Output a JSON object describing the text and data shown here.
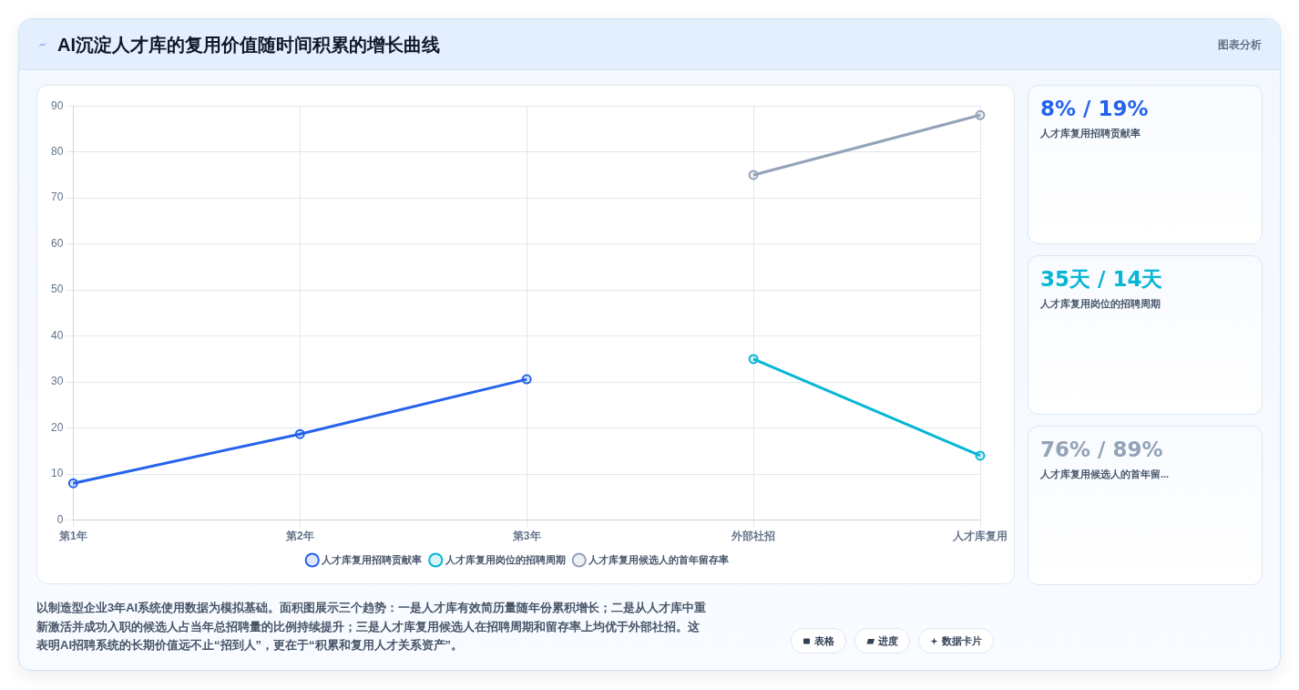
{
  "chart_data": {
    "type": "line",
    "title": "AI沉淀人才库的复用价值随时间积累的增长曲线",
    "categories": [
      "第1年",
      "第2年",
      "第3年",
      "外部社招",
      "人才库复用"
    ],
    "series": [
      {
        "name": "人才库复用招聘贡献率",
        "color": "#2563eb",
        "values": [
          8,
          18.7,
          30.6,
          null,
          null
        ]
      },
      {
        "name": "人才库复用岗位的招聘周期",
        "color": "#06b6d4",
        "values": [
          null,
          null,
          null,
          35,
          14
        ]
      },
      {
        "name": "人才库复用候选人的首年留存率",
        "color": "#94a3b8",
        "values": [
          null,
          null,
          null,
          75,
          88
        ]
      }
    ],
    "ylim": [
      0,
      90
    ],
    "yticks": [
      0,
      10,
      20,
      30,
      40,
      50,
      60,
      70,
      80,
      90
    ],
    "grid": true,
    "legend": "bottom",
    "marker": "circle",
    "annotations": [
      "图表分析",
      "8% / 19%",
      "人才库复用招聘贡献率",
      "35天 / 14天",
      "人才库复用岗位的招聘周期",
      "76% / 89%",
      "人才库复用候选人的首年留...",
      "以制造型企业3年AI系统使用数据为模拟基础。面积图展示三个趋势：一是人才库有效简历量随年份累积增长；二是从人才库中重新激活并成功入职的候选人占当年总招聘量的比例持续提升；三是人才库复用候选人在招聘周期和留存率上均优于外部社招。这表明AI招聘系统的长期价值远不止“招到人”，更在于“积累和复用人才关系资产”。",
      "表格",
      "进度",
      "数据卡片"
    ]
  }
}
